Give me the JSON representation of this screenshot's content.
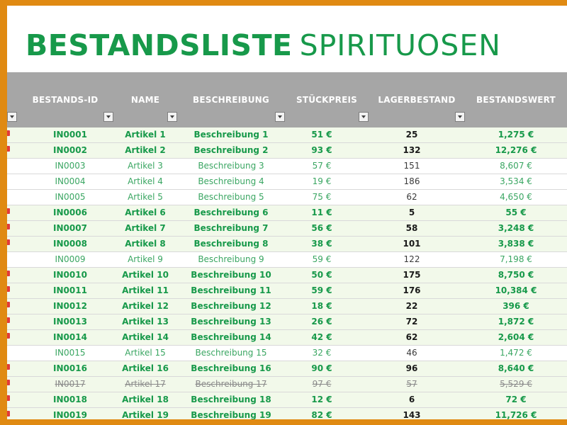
{
  "title": {
    "bold": "BESTANDSLISTE",
    "light": "SPIRITUOSEN"
  },
  "columns": [
    "BESTANDS-ID",
    "NAME",
    "BESCHREIBUNG",
    "STÜCKPREIS",
    "LAGERBESTAND",
    "BESTANDSWERT"
  ],
  "rows": [
    {
      "id": "IN0001",
      "name": "Artikel 1",
      "desc": "Beschreibung 1",
      "price": "51 €",
      "stock": "25",
      "value": "1,275 €",
      "flag": true,
      "style": "highlight"
    },
    {
      "id": "IN0002",
      "name": "Artikel 2",
      "desc": "Beschreibung 2",
      "price": "93 €",
      "stock": "132",
      "value": "12,276 €",
      "flag": true,
      "style": "highlight"
    },
    {
      "id": "IN0003",
      "name": "Artikel 3",
      "desc": "Beschreibung 3",
      "price": "57 €",
      "stock": "151",
      "value": "8,607 €",
      "flag": false,
      "style": "normal"
    },
    {
      "id": "IN0004",
      "name": "Artikel 4",
      "desc": "Beschreibung 4",
      "price": "19 €",
      "stock": "186",
      "value": "3,534 €",
      "flag": false,
      "style": "normal"
    },
    {
      "id": "IN0005",
      "name": "Artikel 5",
      "desc": "Beschreibung 5",
      "price": "75 €",
      "stock": "62",
      "value": "4,650 €",
      "flag": false,
      "style": "normal"
    },
    {
      "id": "IN0006",
      "name": "Artikel 6",
      "desc": "Beschreibung 6",
      "price": "11 €",
      "stock": "5",
      "value": "55 €",
      "flag": true,
      "style": "highlight"
    },
    {
      "id": "IN0007",
      "name": "Artikel 7",
      "desc": "Beschreibung 7",
      "price": "56 €",
      "stock": "58",
      "value": "3,248 €",
      "flag": true,
      "style": "highlight"
    },
    {
      "id": "IN0008",
      "name": "Artikel 8",
      "desc": "Beschreibung 8",
      "price": "38 €",
      "stock": "101",
      "value": "3,838 €",
      "flag": true,
      "style": "highlight"
    },
    {
      "id": "IN0009",
      "name": "Artikel 9",
      "desc": "Beschreibung 9",
      "price": "59 €",
      "stock": "122",
      "value": "7,198 €",
      "flag": false,
      "style": "normal"
    },
    {
      "id": "IN0010",
      "name": "Artikel 10",
      "desc": "Beschreibung 10",
      "price": "50 €",
      "stock": "175",
      "value": "8,750 €",
      "flag": true,
      "style": "highlight"
    },
    {
      "id": "IN0011",
      "name": "Artikel 11",
      "desc": "Beschreibung 11",
      "price": "59 €",
      "stock": "176",
      "value": "10,384 €",
      "flag": true,
      "style": "highlight"
    },
    {
      "id": "IN0012",
      "name": "Artikel 12",
      "desc": "Beschreibung 12",
      "price": "18 €",
      "stock": "22",
      "value": "396 €",
      "flag": true,
      "style": "highlight"
    },
    {
      "id": "IN0013",
      "name": "Artikel 13",
      "desc": "Beschreibung 13",
      "price": "26 €",
      "stock": "72",
      "value": "1,872 €",
      "flag": true,
      "style": "highlight"
    },
    {
      "id": "IN0014",
      "name": "Artikel 14",
      "desc": "Beschreibung 14",
      "price": "42 €",
      "stock": "62",
      "value": "2,604 €",
      "flag": true,
      "style": "highlight"
    },
    {
      "id": "IN0015",
      "name": "Artikel 15",
      "desc": "Beschreibung 15",
      "price": "32 €",
      "stock": "46",
      "value": "1,472 €",
      "flag": false,
      "style": "normal"
    },
    {
      "id": "IN0016",
      "name": "Artikel 16",
      "desc": "Beschreibung 16",
      "price": "90 €",
      "stock": "96",
      "value": "8,640 €",
      "flag": true,
      "style": "highlight"
    },
    {
      "id": "IN0017",
      "name": "Artikel 17",
      "desc": "Beschreibung 17",
      "price": "97 €",
      "stock": "57",
      "value": "5,529 €",
      "flag": true,
      "style": "strike"
    },
    {
      "id": "IN0018",
      "name": "Artikel 18",
      "desc": "Beschreibung 18",
      "price": "12 €",
      "stock": "6",
      "value": "72 €",
      "flag": true,
      "style": "highlight"
    },
    {
      "id": "IN0019",
      "name": "Artikel 19",
      "desc": "Beschreibung 19",
      "price": "82 €",
      "stock": "143",
      "value": "11,726 €",
      "flag": true,
      "style": "highlight"
    }
  ],
  "colors": {
    "frame": "#e08a12",
    "accent": "#17994a",
    "header_bg": "#a6a6a6",
    "row_shade": "#f2f9ea",
    "flag": "#e23b3b"
  }
}
